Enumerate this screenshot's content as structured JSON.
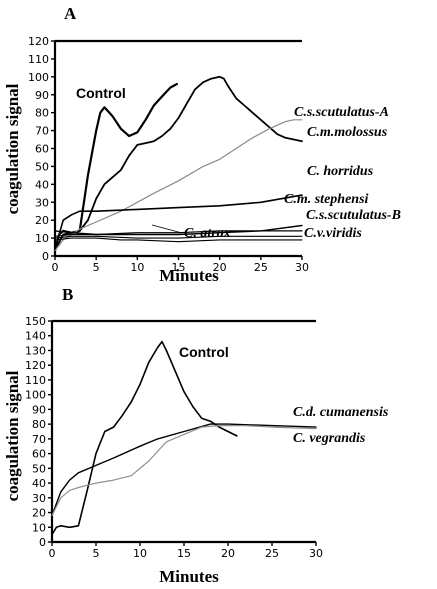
{
  "chart_data": [
    {
      "type": "line",
      "panel_label": "A",
      "xlabel": "Minutes",
      "ylabel": "coagulation signal",
      "xlim": [
        0,
        30
      ],
      "ylim": [
        0,
        120
      ],
      "x_ticks": [
        "0",
        "5",
        "10",
        "15",
        "20",
        "25",
        "30"
      ],
      "y_ticks": [
        "0",
        "10",
        "20",
        "30",
        "40",
        "50",
        "60",
        "70",
        "80",
        "90",
        "100",
        "110",
        "120"
      ],
      "grid": false,
      "legend": "none",
      "series": [
        {
          "name": "Control",
          "color": "#000000",
          "width": 2.2,
          "x": [
            0,
            0.5,
            1,
            2,
            3,
            4,
            5,
            5.5,
            6,
            7,
            8,
            9,
            10,
            11,
            12,
            13,
            14,
            14.8
          ],
          "y": [
            3,
            12,
            14,
            13,
            14,
            45,
            70,
            80,
            83,
            78,
            71,
            67,
            69,
            76,
            84,
            89,
            94,
            96
          ]
        },
        {
          "name": "C.m.molossus",
          "color": "#000000",
          "width": 1.8,
          "x": [
            0,
            1,
            2,
            3,
            4,
            5,
            6,
            7,
            8,
            9,
            10,
            11,
            12,
            13,
            14,
            15,
            16,
            17,
            18,
            19,
            20,
            20.5,
            21,
            22,
            23,
            24,
            25,
            26,
            27,
            28,
            29,
            30
          ],
          "y": [
            3,
            12,
            13,
            14,
            20,
            32,
            40,
            44,
            48,
            56,
            62,
            63,
            64,
            67,
            71,
            77,
            85,
            93,
            97,
            99,
            100,
            99,
            95,
            88,
            84,
            80,
            76,
            72,
            68,
            66,
            65,
            64
          ]
        },
        {
          "name": "C.s.scutulatus-A",
          "color": "#8a8a8a",
          "width": 1.2,
          "x": [
            0,
            1,
            2,
            3,
            5,
            8,
            10,
            12,
            15,
            18,
            20,
            22,
            24,
            26,
            27,
            28,
            29,
            30
          ],
          "y": [
            3,
            9,
            12,
            15,
            19,
            25,
            30,
            35,
            42,
            50,
            54,
            60,
            66,
            71,
            73,
            75,
            76,
            76
          ]
        },
        {
          "name": "C. horridus",
          "color": "#000000",
          "width": 1.6,
          "x": [
            0,
            1,
            2,
            3,
            5,
            10,
            15,
            20,
            25,
            30
          ],
          "y": [
            4,
            20,
            23,
            25,
            25,
            26,
            27,
            28,
            30,
            34
          ]
        },
        {
          "name": "C.m. stephensi",
          "color": "#000000",
          "width": 1.4,
          "x": [
            0,
            2,
            5,
            10,
            15,
            20,
            25,
            30
          ],
          "y": [
            14,
            13,
            12,
            12,
            12,
            13,
            14,
            17
          ]
        },
        {
          "name": "C.s.scutulatus-B",
          "color": "#000000",
          "width": 1.2,
          "x": [
            0,
            2,
            5,
            10,
            15,
            20,
            25,
            30
          ],
          "y": [
            11,
            12,
            12,
            13,
            13,
            14,
            14,
            14
          ]
        },
        {
          "name": "C. atrox",
          "color": "#000000",
          "width": 1.1,
          "x": [
            0,
            2,
            5,
            8,
            10,
            15,
            20,
            25,
            30
          ],
          "y": [
            9,
            10,
            10,
            9,
            9,
            8,
            9,
            9,
            9
          ]
        },
        {
          "name": "C.v.viridis",
          "color": "#000000",
          "width": 1.1,
          "x": [
            0,
            2,
            5,
            10,
            15,
            20,
            25,
            30
          ],
          "y": [
            10,
            11,
            11,
            10,
            10,
            11,
            11,
            11
          ]
        }
      ]
    },
    {
      "type": "line",
      "panel_label": "B",
      "xlabel": "Minutes",
      "ylabel": "coagulation signal",
      "xlim": [
        0,
        30
      ],
      "ylim": [
        0,
        150
      ],
      "x_ticks": [
        "0",
        "5",
        "10",
        "15",
        "20",
        "25",
        "30"
      ],
      "y_ticks": [
        "0",
        "10",
        "20",
        "30",
        "40",
        "50",
        "60",
        "70",
        "80",
        "90",
        "100",
        "110",
        "120",
        "130",
        "140",
        "150"
      ],
      "grid": false,
      "legend": "none",
      "series": [
        {
          "name": "Control",
          "color": "#000000",
          "width": 1.6,
          "x": [
            0,
            0.5,
            1,
            2,
            3,
            4,
            5,
            6,
            7,
            8,
            9,
            10,
            11,
            12,
            12.5,
            13,
            14,
            15,
            16,
            17,
            18,
            19,
            20,
            21
          ],
          "y": [
            5,
            10,
            11,
            10,
            11,
            35,
            60,
            75,
            78,
            86,
            95,
            107,
            122,
            132,
            136,
            130,
            116,
            102,
            92,
            84,
            82,
            78,
            75,
            72
          ]
        },
        {
          "name": "C.d. cumanensis",
          "color": "#000000",
          "width": 1.4,
          "x": [
            0,
            1,
            2,
            3,
            5,
            7,
            10,
            12,
            15,
            18,
            20,
            25,
            30
          ],
          "y": [
            18,
            34,
            42,
            47,
            52,
            57,
            65,
            70,
            75,
            80,
            80,
            79,
            78
          ]
        },
        {
          "name": "C. vegrandis",
          "color": "#909090",
          "width": 1.2,
          "x": [
            0,
            1,
            2,
            3,
            5,
            7,
            9,
            11,
            13,
            15,
            17,
            19,
            22,
            25,
            30
          ],
          "y": [
            18,
            30,
            35,
            37,
            40,
            42,
            45,
            55,
            68,
            73,
            78,
            79,
            79,
            78,
            77
          ]
        }
      ]
    }
  ]
}
